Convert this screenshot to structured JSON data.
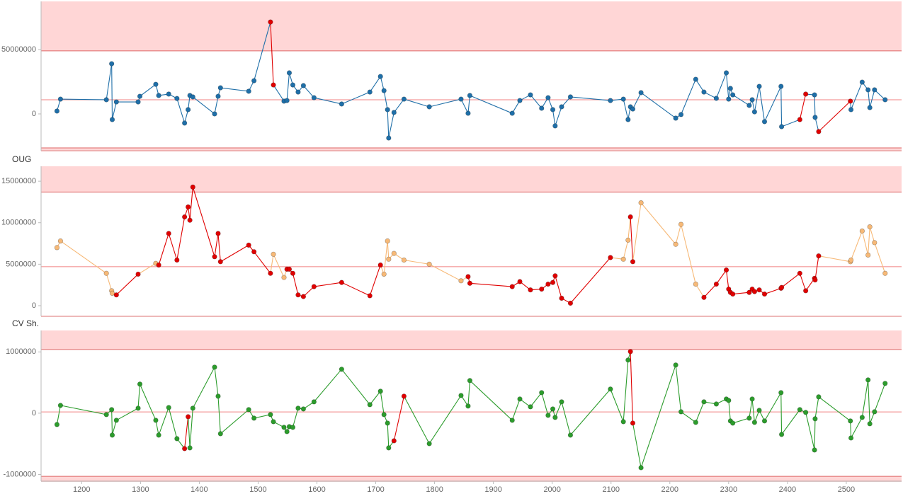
{
  "chart_data": [
    {
      "type": "line",
      "point_colors_line": "#1f6fa8",
      "x": [
        1158,
        1164,
        1242,
        1251,
        1252,
        1259,
        1296,
        1299,
        1326,
        1331,
        1348,
        1362,
        1375,
        1381,
        1384,
        1389,
        1426,
        1432,
        1436,
        1484,
        1493,
        1521,
        1526,
        1544,
        1549,
        1553,
        1559,
        1568,
        1577,
        1595,
        1642,
        1690,
        1708,
        1714,
        1720,
        1722,
        1731,
        1748,
        1791,
        1845,
        1857,
        1860,
        1932,
        1945,
        1963,
        1982,
        1993,
        2001,
        2005,
        2016,
        2031,
        2099,
        2121,
        2129,
        2133,
        2137,
        2151,
        2210,
        2219,
        2244,
        2258,
        2279,
        2296,
        2300,
        2303,
        2307,
        2335,
        2340,
        2344,
        2352,
        2361,
        2389,
        2390,
        2421,
        2431,
        2446,
        2447,
        2453,
        2507,
        2508,
        2527,
        2537,
        2540,
        2548,
        2566
      ],
      "values": [
        2200000,
        11500000,
        11000000,
        39000000,
        -4400000,
        9300000,
        9300000,
        13700000,
        23000000,
        14300000,
        15400000,
        12000000,
        -7100000,
        3300000,
        14300000,
        13200000,
        0,
        13700000,
        20300000,
        17600000,
        25800000,
        71400000,
        22500000,
        9900000,
        10400000,
        31900000,
        22500000,
        17000000,
        22000000,
        12600000,
        7700000,
        17000000,
        29100000,
        18100000,
        3300000,
        -18700000,
        1100000,
        11500000,
        5500000,
        11500000,
        500000,
        14300000,
        500000,
        10400000,
        14800000,
        4400000,
        12600000,
        3300000,
        -9300000,
        5500000,
        13200000,
        10400000,
        11500000,
        -4400000,
        5500000,
        3800000,
        16500000,
        -3300000,
        -500000,
        26900000,
        17000000,
        12100000,
        31900000,
        11500000,
        19800000,
        14800000,
        6600000,
        11000000,
        1600000,
        21400000,
        -6000000,
        21400000,
        -9900000,
        -4400000,
        15400000,
        14800000,
        -2700000,
        -13700000,
        9900000,
        3300000,
        24700000,
        18700000,
        4900000,
        18700000,
        11000000
      ],
      "point_colors": [
        "#1f6fa8",
        "#1f6fa8",
        "#1f6fa8",
        "#1f6fa8",
        "#1f6fa8",
        "#1f6fa8",
        "#1f6fa8",
        "#1f6fa8",
        "#1f6fa8",
        "#1f6fa8",
        "#1f6fa8",
        "#1f6fa8",
        "#1f6fa8",
        "#1f6fa8",
        "#1f6fa8",
        "#1f6fa8",
        "#1f6fa8",
        "#1f6fa8",
        "#1f6fa8",
        "#1f6fa8",
        "#1f6fa8",
        "#e00000",
        "#e00000",
        "#1f6fa8",
        "#1f6fa8",
        "#1f6fa8",
        "#1f6fa8",
        "#1f6fa8",
        "#1f6fa8",
        "#1f6fa8",
        "#1f6fa8",
        "#1f6fa8",
        "#1f6fa8",
        "#1f6fa8",
        "#1f6fa8",
        "#1f6fa8",
        "#1f6fa8",
        "#1f6fa8",
        "#1f6fa8",
        "#1f6fa8",
        "#1f6fa8",
        "#1f6fa8",
        "#1f6fa8",
        "#1f6fa8",
        "#1f6fa8",
        "#1f6fa8",
        "#1f6fa8",
        "#1f6fa8",
        "#1f6fa8",
        "#1f6fa8",
        "#1f6fa8",
        "#1f6fa8",
        "#1f6fa8",
        "#1f6fa8",
        "#1f6fa8",
        "#1f6fa8",
        "#1f6fa8",
        "#1f6fa8",
        "#1f6fa8",
        "#1f6fa8",
        "#1f6fa8",
        "#1f6fa8",
        "#1f6fa8",
        "#1f6fa8",
        "#1f6fa8",
        "#1f6fa8",
        "#1f6fa8",
        "#1f6fa8",
        "#1f6fa8",
        "#1f6fa8",
        "#1f6fa8",
        "#1f6fa8",
        "#1f6fa8",
        "#e00000",
        "#e00000",
        "#1f6fa8",
        "#1f6fa8",
        "#e00000",
        "#e00000",
        "#1f6fa8",
        "#1f6fa8",
        "#1f6fa8",
        "#1f6fa8",
        "#1f6fa8",
        "#1f6fa8"
      ],
      "ucl": 49000000,
      "center": 11000000,
      "lcl": -26400000,
      "xlim": [
        1131,
        2594
      ],
      "ylim": [
        -28600000,
        87400000
      ],
      "yticks": [
        0,
        50000000
      ]
    },
    {
      "type": "line",
      "title": "OUG",
      "point_colors_line": "#f7b977",
      "x": [
        1158,
        1164,
        1242,
        1251,
        1252,
        1259,
        1296,
        1326,
        1331,
        1348,
        1362,
        1375,
        1381,
        1384,
        1389,
        1426,
        1432,
        1436,
        1484,
        1493,
        1521,
        1526,
        1544,
        1549,
        1553,
        1559,
        1568,
        1577,
        1595,
        1642,
        1690,
        1708,
        1714,
        1720,
        1722,
        1731,
        1748,
        1791,
        1845,
        1857,
        1860,
        1932,
        1945,
        1963,
        1982,
        1993,
        2001,
        2005,
        2016,
        2031,
        2099,
        2121,
        2129,
        2133,
        2137,
        2151,
        2210,
        2219,
        2244,
        2258,
        2279,
        2296,
        2300,
        2303,
        2307,
        2335,
        2340,
        2344,
        2352,
        2361,
        2389,
        2390,
        2421,
        2431,
        2446,
        2447,
        2453,
        2507,
        2508,
        2527,
        2537,
        2540,
        2548,
        2566
      ],
      "values": [
        7000000,
        7800000,
        3900000,
        1800000,
        1500000,
        1300000,
        3800000,
        5100000,
        4900000,
        8700000,
        5500000,
        10700000,
        11900000,
        10300000,
        14300000,
        5900000,
        8700000,
        5300000,
        7300000,
        6500000,
        3900000,
        6200000,
        3400000,
        4400000,
        4400000,
        3900000,
        1300000,
        1100000,
        2300000,
        2800000,
        1200000,
        4900000,
        3800000,
        7800000,
        5600000,
        6300000,
        5500000,
        5000000,
        3000000,
        3500000,
        2700000,
        2300000,
        2900000,
        1900000,
        2000000,
        2600000,
        2800000,
        3600000,
        900000,
        300000,
        5800000,
        5600000,
        7900000,
        10700000,
        5300000,
        12400000,
        7400000,
        9800000,
        2600000,
        1000000,
        2600000,
        4300000,
        2000000,
        1600000,
        1400000,
        1600000,
        2000000,
        1700000,
        1900000,
        1400000,
        2100000,
        2200000,
        3900000,
        1800000,
        3300000,
        3100000,
        6000000,
        5300000,
        5500000,
        9000000,
        6100000,
        9500000,
        7600000,
        3900000
      ],
      "point_colors": [
        "#f7b977",
        "#f7b977",
        "#f7b977",
        "#f7b977",
        "#f7b977",
        "#e00000",
        "#e00000",
        "#f7b977",
        "#e00000",
        "#e00000",
        "#e00000",
        "#e00000",
        "#e00000",
        "#e00000",
        "#e00000",
        "#e00000",
        "#e00000",
        "#e00000",
        "#e00000",
        "#e00000",
        "#e00000",
        "#f7b977",
        "#f7b977",
        "#e00000",
        "#e00000",
        "#e00000",
        "#e00000",
        "#e00000",
        "#e00000",
        "#e00000",
        "#e00000",
        "#e00000",
        "#f7b977",
        "#f7b977",
        "#f7b977",
        "#f7b977",
        "#f7b977",
        "#f7b977",
        "#f7b977",
        "#e00000",
        "#e00000",
        "#e00000",
        "#e00000",
        "#e00000",
        "#e00000",
        "#e00000",
        "#e00000",
        "#e00000",
        "#e00000",
        "#e00000",
        "#e00000",
        "#f7b977",
        "#f7b977",
        "#e00000",
        "#e00000",
        "#f7b977",
        "#f7b977",
        "#f7b977",
        "#f7b977",
        "#e00000",
        "#e00000",
        "#e00000",
        "#e00000",
        "#e00000",
        "#e00000",
        "#e00000",
        "#e00000",
        "#e00000",
        "#e00000",
        "#e00000",
        "#e00000",
        "#e00000",
        "#e00000",
        "#e00000",
        "#e00000",
        "#e00000",
        "#e00000",
        "#f7b977",
        "#f7b977",
        "#f7b977",
        "#f7b977",
        "#f7b977",
        "#f7b977",
        "#f7b977"
      ],
      "ucl": 13700000,
      "center": 4700000,
      "xlim": [
        1131,
        2594
      ],
      "ylim": [
        -1280000,
        16800000
      ],
      "yticks": [
        0,
        5000000,
        10000000,
        15000000
      ]
    },
    {
      "type": "line",
      "title": "CV Sh.",
      "point_colors_line": "#2c9c2c",
      "x": [
        1158,
        1164,
        1242,
        1251,
        1252,
        1259,
        1296,
        1299,
        1326,
        1331,
        1348,
        1362,
        1375,
        1381,
        1384,
        1389,
        1426,
        1432,
        1436,
        1484,
        1493,
        1521,
        1526,
        1544,
        1549,
        1553,
        1559,
        1568,
        1577,
        1595,
        1642,
        1690,
        1708,
        1714,
        1720,
        1722,
        1731,
        1748,
        1791,
        1845,
        1857,
        1860,
        1932,
        1945,
        1963,
        1982,
        1993,
        2001,
        2005,
        2016,
        2031,
        2099,
        2121,
        2129,
        2133,
        2137,
        2151,
        2210,
        2219,
        2244,
        2258,
        2279,
        2296,
        2300,
        2303,
        2307,
        2335,
        2340,
        2344,
        2352,
        2361,
        2389,
        2390,
        2421,
        2431,
        2446,
        2447,
        2453,
        2507,
        2508,
        2527,
        2537,
        2540,
        2548,
        2566
      ],
      "values": [
        -185000,
        127000,
        -23000,
        58000,
        -358000,
        -116000,
        81000,
        474000,
        -116000,
        -358000,
        92000,
        -416000,
        -578000,
        -58000,
        -566000,
        81000,
        751000,
        277000,
        -335000,
        58000,
        -81000,
        -23000,
        -139000,
        -231000,
        -301000,
        -220000,
        -231000,
        81000,
        69000,
        185000,
        717000,
        139000,
        358000,
        -23000,
        -162000,
        -566000,
        -451000,
        277000,
        -497000,
        289000,
        116000,
        532000,
        -116000,
        231000,
        104000,
        335000,
        -35000,
        69000,
        -69000,
        185000,
        -358000,
        393000,
        -139000,
        867000,
        1006000,
        -162000,
        -890000,
        786000,
        23000,
        -150000,
        185000,
        150000,
        231000,
        208000,
        -127000,
        -162000,
        -81000,
        231000,
        -150000,
        46000,
        -127000,
        335000,
        -347000,
        58000,
        12000,
        -601000,
        -92000,
        266000,
        -127000,
        -405000,
        -69000,
        543000,
        -173000,
        23000,
        486000
      ],
      "point_colors": [
        "#2c9c2c",
        "#2c9c2c",
        "#2c9c2c",
        "#2c9c2c",
        "#2c9c2c",
        "#2c9c2c",
        "#2c9c2c",
        "#2c9c2c",
        "#2c9c2c",
        "#2c9c2c",
        "#2c9c2c",
        "#2c9c2c",
        "#e00000",
        "#e00000",
        "#2c9c2c",
        "#2c9c2c",
        "#2c9c2c",
        "#2c9c2c",
        "#2c9c2c",
        "#2c9c2c",
        "#2c9c2c",
        "#2c9c2c",
        "#2c9c2c",
        "#2c9c2c",
        "#2c9c2c",
        "#2c9c2c",
        "#2c9c2c",
        "#2c9c2c",
        "#2c9c2c",
        "#2c9c2c",
        "#2c9c2c",
        "#2c9c2c",
        "#2c9c2c",
        "#2c9c2c",
        "#2c9c2c",
        "#2c9c2c",
        "#e00000",
        "#e00000",
        "#2c9c2c",
        "#2c9c2c",
        "#2c9c2c",
        "#2c9c2c",
        "#2c9c2c",
        "#2c9c2c",
        "#2c9c2c",
        "#2c9c2c",
        "#2c9c2c",
        "#2c9c2c",
        "#2c9c2c",
        "#2c9c2c",
        "#2c9c2c",
        "#2c9c2c",
        "#2c9c2c",
        "#2c9c2c",
        "#e00000",
        "#e00000",
        "#2c9c2c",
        "#2c9c2c",
        "#2c9c2c",
        "#2c9c2c",
        "#2c9c2c",
        "#2c9c2c",
        "#2c9c2c",
        "#2c9c2c",
        "#2c9c2c",
        "#2c9c2c",
        "#2c9c2c",
        "#2c9c2c",
        "#2c9c2c",
        "#2c9c2c",
        "#2c9c2c",
        "#2c9c2c",
        "#2c9c2c",
        "#2c9c2c",
        "#2c9c2c",
        "#2c9c2c",
        "#2c9c2c",
        "#2c9c2c",
        "#2c9c2c",
        "#2c9c2c",
        "#2c9c2c",
        "#2c9c2c",
        "#2c9c2c",
        "#2c9c2c",
        "#2c9c2c"
      ],
      "ucl": 1040000,
      "center": 20000,
      "lcl": -1030000,
      "xlim": [
        1131,
        2594
      ],
      "ylim": [
        -1110000,
        1350000
      ],
      "yticks": [
        -1000000,
        0,
        1000000
      ],
      "xticks": [
        1200,
        1300,
        1400,
        1500,
        1600,
        1700,
        1800,
        1900,
        2000,
        2100,
        2200,
        2300,
        2400,
        2500
      ]
    }
  ]
}
